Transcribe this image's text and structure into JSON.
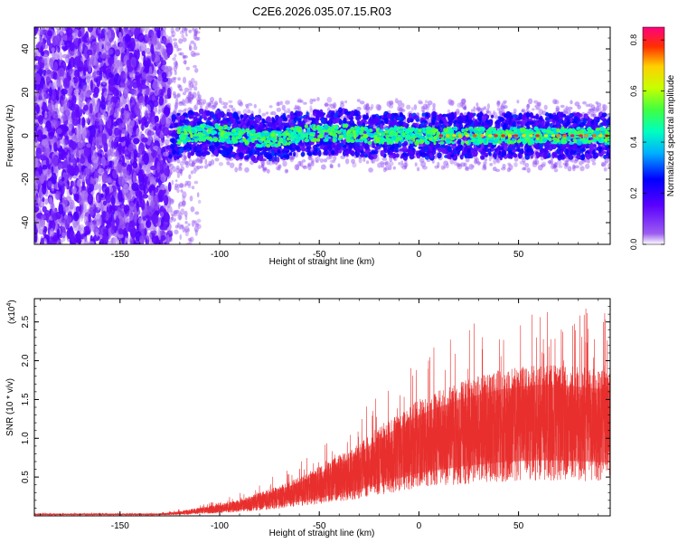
{
  "title": "C2E6.2026.035.07.15.R03",
  "chart_data": [
    {
      "type": "heatmap",
      "xlabel": "Height of straight line (km)",
      "ylabel": "Frequency (Hz)",
      "xlim": [
        -193,
        96
      ],
      "ylim": [
        -50,
        50
      ],
      "xticks": [
        -150,
        -100,
        -50,
        0,
        50
      ],
      "yticks": [
        -40,
        -20,
        0,
        20,
        40
      ],
      "colorbar": {
        "label": "Normalized spectral amplitude",
        "range": [
          0.0,
          0.85
        ],
        "ticks": [
          0.0,
          0.2,
          0.4,
          0.6,
          0.8
        ]
      },
      "regions": [
        {
          "name": "noise",
          "x_range": [
            -193,
            -125
          ],
          "freq_range": [
            -50,
            50
          ],
          "amplitude": 0.05
        },
        {
          "name": "noise-fade",
          "x_range": [
            -125,
            -110
          ],
          "freq_range": [
            -50,
            50
          ],
          "amplitude": 0.03
        },
        {
          "name": "carrier",
          "x_range": [
            -125,
            96
          ],
          "freq_center": 0,
          "half_width": 10,
          "amplitude_peak": 0.85
        }
      ]
    },
    {
      "type": "line",
      "xlabel": "Height of straight line (km)",
      "ylabel": "SNR (10 * v/v)",
      "scale_label": "(x10",
      "scale_exponent": "4",
      "scale_close": ")",
      "xlim": [
        -193,
        96
      ],
      "ylim": [
        0,
        2.8
      ],
      "xticks": [
        -150,
        -100,
        -50,
        0,
        50
      ],
      "yticks": [
        0.5,
        1.0,
        1.5,
        2.0,
        2.5
      ],
      "ytick_labels": [
        "0.5",
        "1.0",
        "1.5",
        "2.0",
        "2.5"
      ],
      "color": "#e8302e",
      "envelope": [
        [
          -193,
          0.02
        ],
        [
          -130,
          0.02
        ],
        [
          -120,
          0.04
        ],
        [
          -110,
          0.07
        ],
        [
          -100,
          0.1
        ],
        [
          -90,
          0.14
        ],
        [
          -80,
          0.2
        ],
        [
          -70,
          0.26
        ],
        [
          -60,
          0.33
        ],
        [
          -50,
          0.42
        ],
        [
          -40,
          0.52
        ],
        [
          -30,
          0.62
        ],
        [
          -20,
          0.76
        ],
        [
          -10,
          0.88
        ],
        [
          0,
          1.0
        ],
        [
          10,
          1.08
        ],
        [
          20,
          1.15
        ],
        [
          30,
          1.2
        ],
        [
          40,
          1.25
        ],
        [
          50,
          1.28
        ],
        [
          60,
          1.3
        ],
        [
          70,
          1.3
        ],
        [
          80,
          1.28
        ],
        [
          96,
          1.25
        ]
      ]
    }
  ]
}
